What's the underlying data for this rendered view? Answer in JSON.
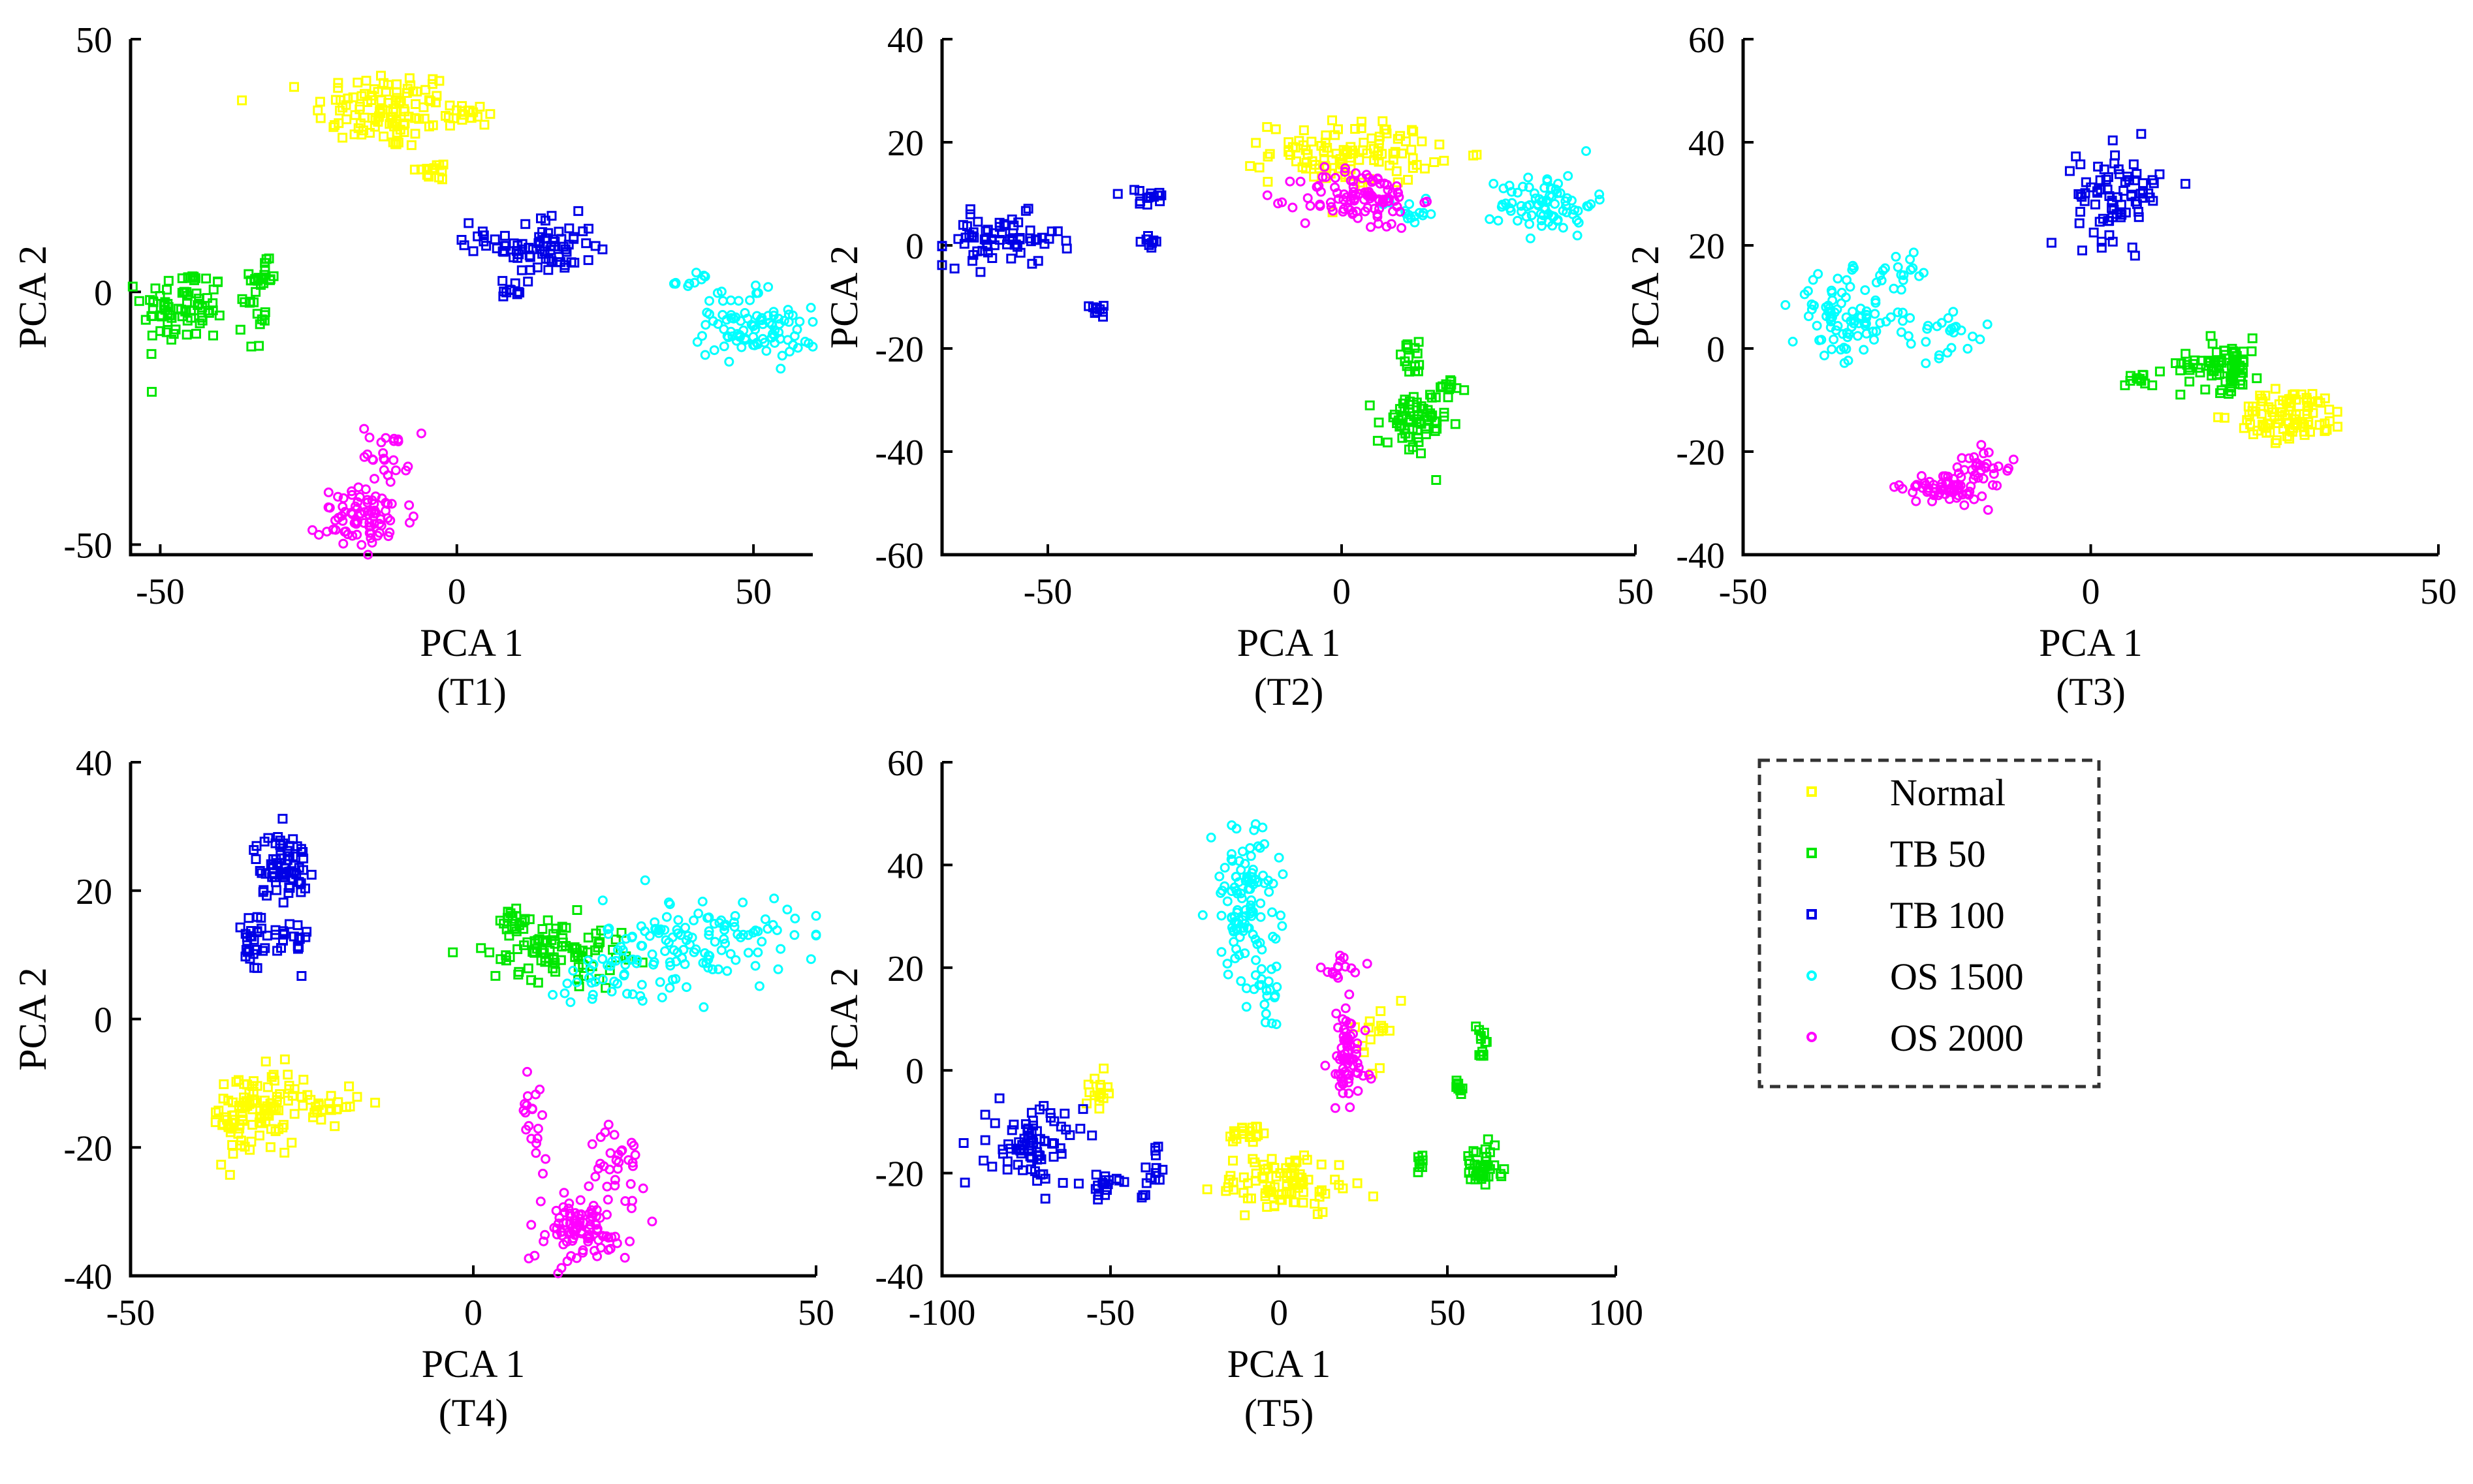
{
  "chart_data": [
    {
      "type": "scatter",
      "caption": "(T1)",
      "xlabel": "PCA 1",
      "ylabel": "PCA 2",
      "xlim": [
        -55,
        60
      ],
      "ylim": [
        -52,
        50
      ],
      "xticks": [
        -50,
        0,
        50
      ],
      "yticks": [
        -50,
        0,
        50
      ],
      "xtick_labels": [
        "-50",
        "0",
        "50"
      ],
      "ytick_labels": [
        "-50",
        "0",
        "50"
      ],
      "clusters": [
        {
          "series": "Normal",
          "cx": -12,
          "cy": 36,
          "sx": 6,
          "sy": 4,
          "n": 110
        },
        {
          "series": "Normal",
          "cx": 1,
          "cy": 35,
          "sx": 2,
          "sy": 1.2,
          "n": 18
        },
        {
          "series": "Normal",
          "cx": -4,
          "cy": 24,
          "sx": 2,
          "sy": 1,
          "n": 15
        },
        {
          "series": "TB 50",
          "cx": -46,
          "cy": -3,
          "sx": 3.5,
          "sy": 4,
          "n": 75
        },
        {
          "series": "TB 50",
          "cx": -33,
          "cy": 3,
          "sx": 1.5,
          "sy": 1.5,
          "n": 18
        },
        {
          "series": "TB 50",
          "cx": -34,
          "cy": -5,
          "sx": 1,
          "sy": 3,
          "n": 15
        },
        {
          "series": "TB 100",
          "cx": 15,
          "cy": 9,
          "sx": 4,
          "sy": 3,
          "n": 70
        },
        {
          "series": "TB 100",
          "cx": 9,
          "cy": 0,
          "sx": 1.5,
          "sy": 1.2,
          "n": 10
        },
        {
          "series": "TB 100",
          "cx": 5,
          "cy": 11,
          "sx": 2,
          "sy": 1.5,
          "n": 10
        },
        {
          "series": "OS 1500",
          "cx": 50,
          "cy": -8,
          "sx": 5,
          "sy": 2.5,
          "n": 80
        },
        {
          "series": "OS 1500",
          "cx": 40,
          "cy": 2,
          "sx": 1.5,
          "sy": 1,
          "n": 10
        },
        {
          "series": "OS 1500",
          "cx": 46,
          "cy": -2,
          "sx": 3,
          "sy": 1.5,
          "n": 15
        },
        {
          "series": "OS 2000",
          "cx": -15,
          "cy": -45,
          "sx": 4,
          "sy": 3,
          "n": 80
        },
        {
          "series": "OS 2000",
          "cx": -12,
          "cy": -32,
          "sx": 2,
          "sy": 3,
          "n": 25
        }
      ]
    },
    {
      "type": "scatter",
      "caption": "(T2)",
      "xlabel": "PCA 1",
      "ylabel": "PCA 2",
      "xlim": [
        -68,
        50
      ],
      "ylim": [
        -60,
        40
      ],
      "xticks": [
        -50,
        0,
        50
      ],
      "yticks": [
        -60,
        -40,
        -20,
        0,
        20,
        40
      ],
      "xtick_labels": [
        "-50",
        "0",
        "50"
      ],
      "ytick_labels": [
        "-60",
        "-40",
        "-20",
        "0",
        "20",
        "40"
      ],
      "clusters": [
        {
          "series": "Normal",
          "cx": 2,
          "cy": 18,
          "sx": 7,
          "sy": 3,
          "n": 110
        },
        {
          "series": "TB 50",
          "cx": 12,
          "cy": -35,
          "sx": 3,
          "sy": 3.5,
          "n": 60
        },
        {
          "series": "TB 50",
          "cx": 12,
          "cy": -22,
          "sx": 1.5,
          "sy": 1.5,
          "n": 15
        },
        {
          "series": "TB 50",
          "cx": 18,
          "cy": -27,
          "sx": 1.5,
          "sy": 1.2,
          "n": 12
        },
        {
          "series": "TB 100",
          "cx": -58,
          "cy": 1,
          "sx": 5,
          "sy": 2.5,
          "n": 70
        },
        {
          "series": "TB 100",
          "cx": -33,
          "cy": 9,
          "sx": 2,
          "sy": 1,
          "n": 15
        },
        {
          "series": "TB 100",
          "cx": -33,
          "cy": 1,
          "sx": 1.2,
          "sy": 0.8,
          "n": 10
        },
        {
          "series": "TB 100",
          "cx": -42,
          "cy": -12,
          "sx": 1.5,
          "sy": 0.7,
          "n": 10
        },
        {
          "series": "OS 1500",
          "cx": 35,
          "cy": 8,
          "sx": 4,
          "sy": 3,
          "n": 80
        },
        {
          "series": "OS 1500",
          "cx": 12,
          "cy": 7,
          "sx": 3,
          "sy": 1.5,
          "n": 15
        },
        {
          "series": "OS 2000",
          "cx": 3,
          "cy": 9,
          "sx": 5,
          "sy": 3,
          "n": 100
        }
      ]
    },
    {
      "type": "scatter",
      "caption": "(T3)",
      "xlabel": "PCA 1",
      "ylabel": "PCA 2",
      "xlim": [
        -50,
        50
      ],
      "ylim": [
        -40,
        60
      ],
      "xticks": [
        -50,
        0,
        50
      ],
      "yticks": [
        -40,
        -20,
        0,
        20,
        40,
        60
      ],
      "xtick_labels": [
        "-50",
        "0",
        "50"
      ],
      "ytick_labels": [
        "-40",
        "-20",
        "0",
        "20",
        "40",
        "60"
      ],
      "clusters": [
        {
          "series": "Normal",
          "cx": 29,
          "cy": -13,
          "sx": 4,
          "sy": 2.5,
          "n": 90
        },
        {
          "series": "TB 50",
          "cx": 19,
          "cy": -3,
          "sx": 3,
          "sy": 2.5,
          "n": 75
        },
        {
          "series": "TB 50",
          "cx": 7,
          "cy": -6,
          "sx": 1.5,
          "sy": 1,
          "n": 12
        },
        {
          "series": "TB 100",
          "cx": 4,
          "cy": 30,
          "sx": 3,
          "sy": 4.5,
          "n": 80
        },
        {
          "series": "OS 1500",
          "cx": -35,
          "cy": 6,
          "sx": 4,
          "sy": 4,
          "n": 90
        },
        {
          "series": "OS 1500",
          "cx": -22,
          "cy": 3,
          "sx": 4,
          "sy": 2.5,
          "n": 25
        },
        {
          "series": "OS 1500",
          "cx": -27,
          "cy": 15,
          "sx": 2,
          "sy": 2,
          "n": 15
        },
        {
          "series": "OS 2000",
          "cx": -21,
          "cy": -27,
          "sx": 3,
          "sy": 1.5,
          "n": 70
        },
        {
          "series": "OS 2000",
          "cx": -15,
          "cy": -22,
          "sx": 2,
          "sy": 1.5,
          "n": 25
        }
      ]
    },
    {
      "type": "scatter",
      "caption": "(T4)",
      "xlabel": "PCA 1",
      "ylabel": "PCA 2",
      "xlim": [
        -50,
        50
      ],
      "ylim": [
        -40,
        40
      ],
      "xticks": [
        -50,
        0,
        50
      ],
      "yticks": [
        -40,
        -20,
        0,
        20,
        40
      ],
      "xtick_labels": [
        "-50",
        "0",
        "50"
      ],
      "ytick_labels": [
        "-40",
        "-20",
        "0",
        "20",
        "40"
      ],
      "clusters": [
        {
          "series": "Normal",
          "cx": -32,
          "cy": -15,
          "sx": 3,
          "sy": 3.5,
          "n": 100
        },
        {
          "series": "Normal",
          "cx": -22,
          "cy": -13,
          "sx": 3,
          "sy": 1.5,
          "n": 30
        },
        {
          "series": "TB 50",
          "cx": 12,
          "cy": 11,
          "sx": 5,
          "sy": 2.5,
          "n": 90
        },
        {
          "series": "TB 50",
          "cx": 6,
          "cy": 15,
          "sx": 1,
          "sy": 1,
          "n": 15
        },
        {
          "series": "TB 100",
          "cx": -28,
          "cy": 24,
          "sx": 2,
          "sy": 2.5,
          "n": 70
        },
        {
          "series": "TB 100",
          "cx": -32,
          "cy": 12,
          "sx": 1,
          "sy": 3.5,
          "n": 25
        },
        {
          "series": "TB 100",
          "cx": -27,
          "cy": 12,
          "sx": 1.5,
          "sy": 2,
          "n": 20
        },
        {
          "series": "OS 1500",
          "cx": 33,
          "cy": 12,
          "sx": 7,
          "sy": 3.5,
          "n": 130
        },
        {
          "series": "OS 1500",
          "cx": 19,
          "cy": 6,
          "sx": 4,
          "sy": 2,
          "n": 25
        },
        {
          "series": "OS 2000",
          "cx": 15,
          "cy": -33,
          "sx": 4,
          "sy": 2.5,
          "n": 90
        },
        {
          "series": "OS 2000",
          "cx": 21,
          "cy": -23,
          "sx": 2,
          "sy": 3,
          "n": 35
        },
        {
          "series": "OS 2000",
          "cx": 9,
          "cy": -15,
          "sx": 1,
          "sy": 3.5,
          "n": 20
        }
      ]
    },
    {
      "type": "scatter",
      "caption": "(T5)",
      "xlabel": "PCA 1",
      "ylabel": "PCA 2",
      "xlim": [
        -100,
        100
      ],
      "ylim": [
        -40,
        60
      ],
      "xticks": [
        -100,
        -50,
        0,
        50,
        100
      ],
      "yticks": [
        -40,
        -20,
        0,
        20,
        40,
        60
      ],
      "xtick_labels": [
        "-100",
        "-50",
        "0",
        "50",
        "100"
      ],
      "ytick_labels": [
        "-40",
        "-20",
        "0",
        "20",
        "40",
        "60"
      ],
      "clusters": [
        {
          "series": "Normal",
          "cx": 2,
          "cy": -22,
          "sx": 10,
          "sy": 3,
          "n": 90
        },
        {
          "series": "Normal",
          "cx": -9,
          "cy": -12,
          "sx": 3,
          "sy": 1.2,
          "n": 20
        },
        {
          "series": "Normal",
          "cx": -54,
          "cy": -4,
          "sx": 1.5,
          "sy": 1.5,
          "n": 15
        },
        {
          "series": "Normal",
          "cx": 29,
          "cy": 7,
          "sx": 2,
          "sy": 3,
          "n": 15
        },
        {
          "series": "TB 50",
          "cx": 60,
          "cy": -19,
          "sx": 3,
          "sy": 2,
          "n": 40
        },
        {
          "series": "TB 50",
          "cx": 60,
          "cy": 4,
          "sx": 1,
          "sy": 3,
          "n": 12
        },
        {
          "series": "TB 50",
          "cx": 53,
          "cy": -3,
          "sx": 1,
          "sy": 1,
          "n": 10
        },
        {
          "series": "TB 50",
          "cx": 42,
          "cy": -18,
          "sx": 1,
          "sy": 1,
          "n": 8
        },
        {
          "series": "TB 100",
          "cx": -72,
          "cy": -15,
          "sx": 7,
          "sy": 4,
          "n": 80
        },
        {
          "series": "TB 100",
          "cx": -52,
          "cy": -22,
          "sx": 2,
          "sy": 1.5,
          "n": 15
        },
        {
          "series": "TB 100",
          "cx": -38,
          "cy": -20,
          "sx": 2,
          "sy": 3,
          "n": 15
        },
        {
          "series": "OS 1500",
          "cx": -10,
          "cy": 33,
          "sx": 5,
          "sy": 7,
          "n": 110
        },
        {
          "series": "OS 1500",
          "cx": -3,
          "cy": 15,
          "sx": 3,
          "sy": 3,
          "n": 20
        },
        {
          "series": "OS 2000",
          "cx": 20,
          "cy": 2,
          "sx": 3,
          "sy": 5,
          "n": 70
        },
        {
          "series": "OS 2000",
          "cx": 19,
          "cy": 20,
          "sx": 3,
          "sy": 1.5,
          "n": 15
        }
      ]
    }
  ],
  "legend": {
    "items": [
      {
        "label": "Normal",
        "color": "#ffff00"
      },
      {
        "label": "TB 50",
        "color": "#00e600"
      },
      {
        "label": "TB 100",
        "color": "#0000e6"
      },
      {
        "label": "OS 1500",
        "color": "#00ffff"
      },
      {
        "label": "OS 2000",
        "color": "#ff00ff"
      }
    ],
    "marker_shapes": {
      "Normal": "square",
      "TB 50": "square",
      "TB 100": "square",
      "OS 1500": "circle",
      "OS 2000": "circle"
    },
    "placement": "bottom-right"
  }
}
